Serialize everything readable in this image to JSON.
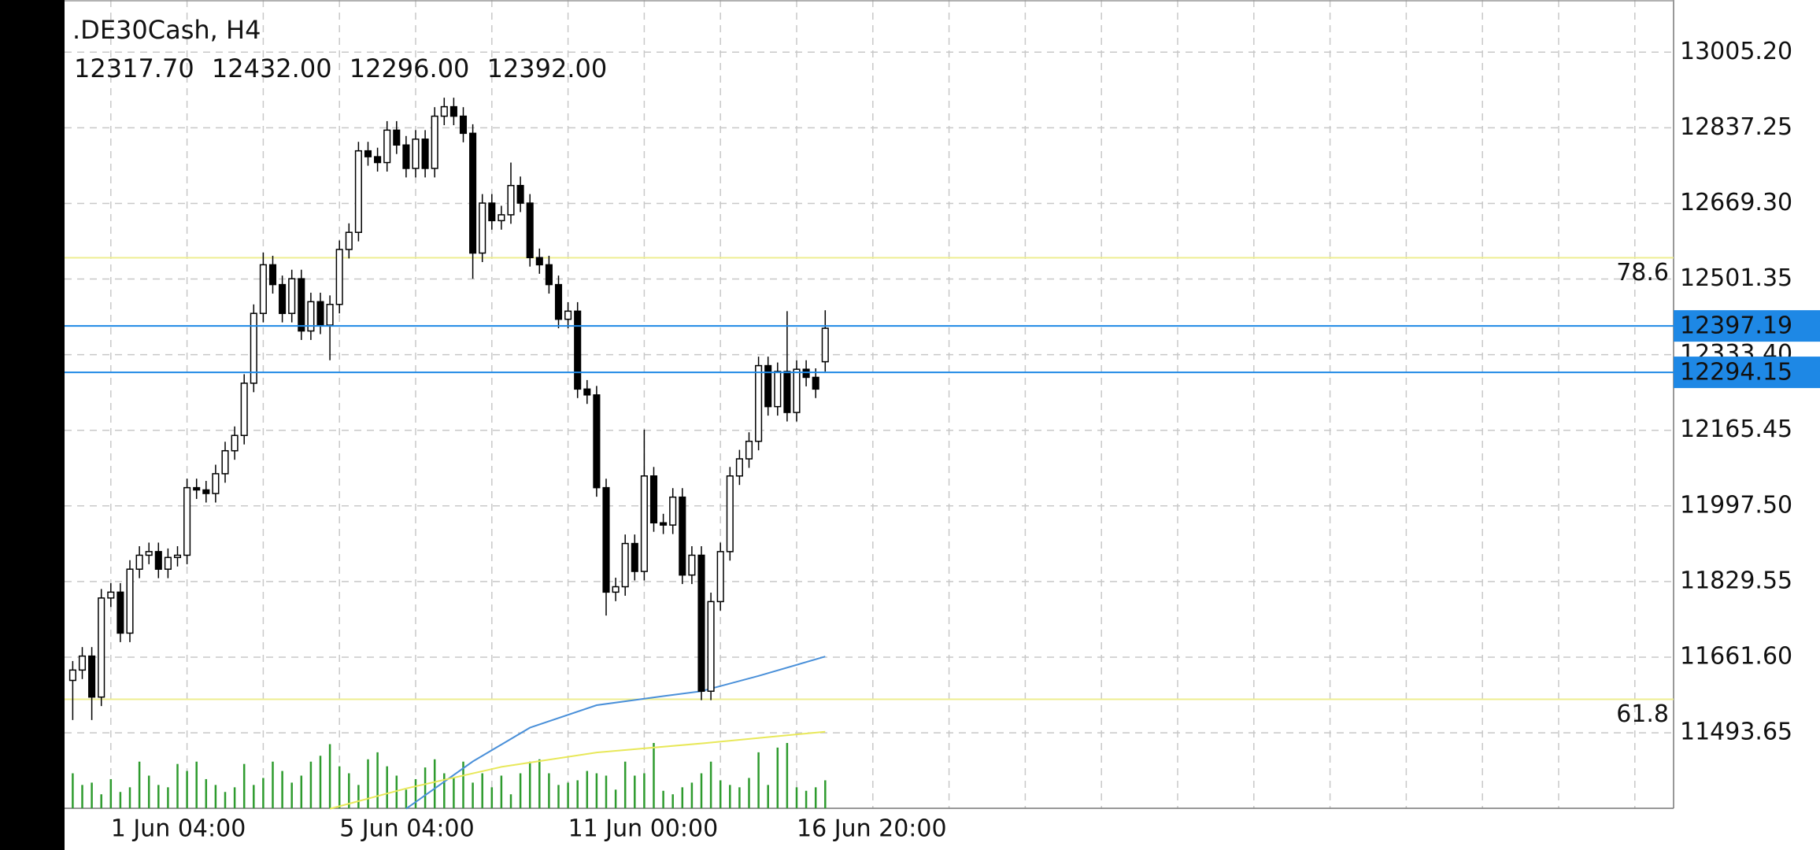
{
  "chart_data": {
    "type": "candlestick",
    "title": ".DE30Cash, H4",
    "quote": [
      {
        "value": 12317.7,
        "label": "12317.70"
      },
      {
        "value": 12432,
        "label": "12432.00"
      },
      {
        "value": 12296,
        "label": "12296.00"
      },
      {
        "value": 12392,
        "label": "12392.00"
      }
    ],
    "categories": [
      null,
      null,
      null,
      null,
      "1 Jun 04:00",
      null,
      null,
      null,
      null,
      null,
      null,
      null,
      null,
      null,
      null,
      null,
      null,
      null,
      null,
      null,
      null,
      null,
      null,
      null,
      null,
      null,
      null,
      null,
      "5 Jun 04:00",
      null,
      null,
      null,
      null,
      null,
      null,
      null,
      null,
      null,
      null,
      null,
      null,
      null,
      null,
      null,
      null,
      null,
      null,
      null,
      null,
      null,
      null,
      null,
      "11 Jun 00:00",
      null,
      null,
      null,
      null,
      null,
      null,
      null,
      null,
      null,
      null,
      null,
      null,
      null,
      null,
      null,
      null,
      null,
      null,
      null,
      null,
      null,
      null,
      null,
      "16 Jun 20:00",
      null,
      null,
      null
    ],
    "open": [
      11610,
      11633,
      11664,
      11573,
      11793,
      11806,
      11715,
      11857,
      11888,
      11896,
      11857,
      11883,
      11888,
      12038,
      12033,
      12025,
      12069,
      12120,
      12154,
      12270,
      12425,
      12533,
      12489,
      12425,
      12502,
      12386,
      12451,
      12399,
      12445,
      12567,
      12605,
      12786,
      12773,
      12760,
      12832,
      12799,
      12747,
      12812,
      12747,
      12863,
      12884,
      12863,
      12825,
      12559,
      12670,
      12631,
      12644,
      12709,
      12670,
      12549,
      12533,
      12489,
      12412,
      12430,
      12257,
      12244,
      12038,
      11806,
      11818,
      11914,
      11852,
      12064,
      11960,
      11955,
      12017,
      11844,
      11888,
      11586,
      11785,
      11896,
      12064,
      12102,
      12141,
      12309,
      12218,
      12296,
      12205,
      12301,
      12283,
      12317.7
    ],
    "high": [
      11653,
      11684,
      11684,
      11813,
      11826,
      11826,
      11877,
      11908,
      11916,
      11916,
      11903,
      11908,
      12058,
      12058,
      12053,
      12089,
      12140,
      12174,
      12290,
      12445,
      12560,
      12553,
      12509,
      12522,
      12522,
      12471,
      12471,
      12465,
      12587,
      12625,
      12806,
      12806,
      12793,
      12852,
      12852,
      12819,
      12832,
      12832,
      12883,
      12904,
      12904,
      12883,
      12845,
      12690,
      12690,
      12664,
      12760,
      12729,
      12690,
      12569,
      12553,
      12509,
      12450,
      12450,
      12277,
      12264,
      12058,
      11838,
      11934,
      11934,
      12167,
      12084,
      11980,
      12037,
      12037,
      11908,
      11908,
      11805,
      11916,
      12084,
      12122,
      12161,
      12329,
      12329,
      12316,
      12430,
      12321,
      12321,
      12303,
      12432
    ],
    "low": [
      11522,
      11613,
      11522,
      11553,
      11773,
      11695,
      11695,
      11837,
      11868,
      11837,
      11837,
      11863,
      11868,
      12013,
      12005,
      12005,
      12049,
      12100,
      12134,
      12250,
      12405,
      12469,
      12405,
      12405,
      12366,
      12366,
      12379,
      12321,
      12425,
      12547,
      12585,
      12753,
      12740,
      12740,
      12779,
      12727,
      12727,
      12727,
      12727,
      12843,
      12843,
      12805,
      12502,
      12539,
      12611,
      12611,
      12624,
      12650,
      12529,
      12513,
      12469,
      12392,
      12392,
      12237,
      12224,
      12018,
      11754,
      11786,
      11798,
      11832,
      11832,
      11940,
      11935,
      11935,
      11824,
      11824,
      11566,
      11566,
      11765,
      11876,
      12044,
      12082,
      12121,
      12198,
      12198,
      12185,
      12185,
      12263,
      12237,
      12296
    ],
    "close": [
      11633,
      11664,
      11573,
      11793,
      11806,
      11715,
      11857,
      11888,
      11896,
      11857,
      11883,
      11888,
      12038,
      12033,
      12025,
      12069,
      12120,
      12154,
      12270,
      12425,
      12533,
      12489,
      12425,
      12502,
      12386,
      12451,
      12399,
      12445,
      12567,
      12605,
      12786,
      12773,
      12760,
      12832,
      12799,
      12747,
      12812,
      12747,
      12863,
      12884,
      12863,
      12825,
      12559,
      12670,
      12631,
      12644,
      12709,
      12670,
      12549,
      12533,
      12489,
      12412,
      12430,
      12257,
      12244,
      12038,
      11806,
      11818,
      11914,
      11852,
      12064,
      11960,
      11955,
      12017,
      11844,
      11888,
      11586,
      11785,
      11896,
      12064,
      12102,
      12141,
      12309,
      12218,
      12296,
      12205,
      12301,
      12283,
      12257,
      12392
    ],
    "volume": [
      30,
      20,
      22,
      12,
      25,
      14,
      18,
      40,
      28,
      20,
      18,
      38,
      32,
      40,
      25,
      20,
      14,
      18,
      38,
      20,
      26,
      40,
      32,
      22,
      28,
      40,
      45,
      55,
      36,
      30,
      20,
      42,
      48,
      36,
      28,
      16,
      25,
      35,
      42,
      30,
      26,
      40,
      22,
      30,
      18,
      28,
      12,
      30,
      40,
      42,
      30,
      20,
      22,
      24,
      32,
      30,
      28,
      16,
      40,
      28,
      30,
      56,
      15,
      12,
      18,
      22,
      30,
      40,
      24,
      20,
      18,
      26,
      48,
      20,
      52,
      56,
      18,
      15,
      18,
      24
    ],
    "volume_color": "#2e9b2e",
    "up_color": "#ffffff",
    "down_color": "#000000",
    "indicators": [
      {
        "color": "#4a90d9",
        "x": [
          35,
          42,
          48,
          55,
          62,
          66,
          72,
          79
        ],
        "values": [
          11325,
          11430,
          11505,
          11555,
          11575,
          11586,
          11620,
          11663
        ]
      },
      {
        "color": "#e8e85a",
        "x": [
          27,
          35,
          45,
          55,
          66,
          79
        ],
        "values": [
          11325,
          11370,
          11418,
          11450,
          11470,
          11496
        ]
      }
    ],
    "fib_levels": [
      {
        "label": "78.6",
        "value": 12548.5,
        "color": "#eeee90"
      },
      {
        "label": "61.8",
        "value": 11568,
        "color": "#eeee90"
      }
    ],
    "price_lines": [
      {
        "value": 12397.19,
        "color": "#1e88e5"
      },
      {
        "value": 12294.15,
        "color": "#1e88e5"
      }
    ],
    "ylim": [
      11326,
      13121
    ],
    "yticks": [
      {
        "value": 13005.2,
        "label": "13005.20"
      },
      12837.25,
      {
        "value": 12669.3,
        "label": "12669.30"
      },
      12501.35,
      {
        "value": 12333.4,
        "label": "12333.40"
      },
      12165.45,
      {
        "value": 11997.5,
        "label": "11997.50"
      },
      11829.55,
      {
        "value": 11661.6,
        "label": "11661.60"
      },
      11493.65
    ],
    "grid": true
  }
}
